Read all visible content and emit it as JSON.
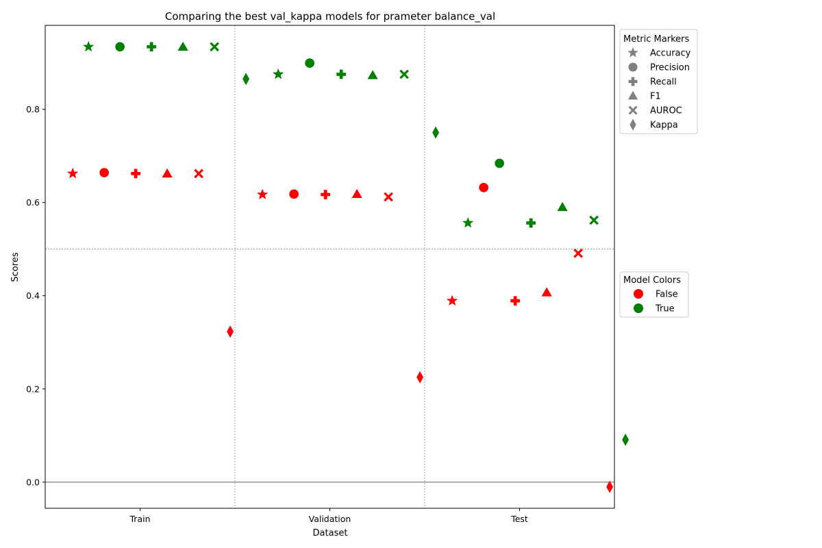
{
  "chart_data": {
    "type": "scatter",
    "title": "Comparing the best val_kappa models for prameter balance_val",
    "xlabel": "Dataset",
    "ylabel": "Scores",
    "categories": [
      "Train",
      "Validation",
      "Test"
    ],
    "metrics": [
      "Accuracy",
      "Precision",
      "Recall",
      "F1",
      "AUROC",
      "Kappa"
    ],
    "ylim": [
      -0.056,
      0.98
    ],
    "yticks": [
      0.0,
      0.2,
      0.4,
      0.6,
      0.8
    ],
    "ytick_labels": [
      "0.0",
      "0.2",
      "0.4",
      "0.6",
      "0.8"
    ],
    "hline_zero": 0.0,
    "hline_mid": 0.5,
    "series": [
      {
        "name": "False",
        "color": "#ff0000",
        "values": {
          "Train": [
            0.662,
            0.664,
            0.662,
            0.662,
            0.662,
            0.323
          ],
          "Validation": [
            0.617,
            0.618,
            0.617,
            0.618,
            0.612,
            0.225
          ],
          "Test": [
            0.389,
            0.632,
            0.389,
            0.407,
            0.491,
            -0.01
          ]
        }
      },
      {
        "name": "True",
        "color": "#008000",
        "values": {
          "Train": [
            0.934,
            0.934,
            0.934,
            0.934,
            0.934,
            0.865
          ],
          "Validation": [
            0.875,
            0.899,
            0.875,
            0.873,
            0.875,
            0.75
          ],
          "Test": [
            0.556,
            0.684,
            0.556,
            0.59,
            0.562,
            0.091
          ]
        }
      }
    ],
    "legend_markers": {
      "title": "Metric Markers",
      "entries": [
        "Accuracy",
        "Precision",
        "Recall",
        "F1",
        "AUROC",
        "Kappa"
      ],
      "placement": "outside top-right"
    },
    "legend_colors": {
      "title": "Model Colors",
      "entries": [
        "False",
        "True"
      ],
      "placement": "outside middle-right"
    }
  },
  "colors": {
    "marker_gray": "#808080",
    "grid": "#808080"
  }
}
